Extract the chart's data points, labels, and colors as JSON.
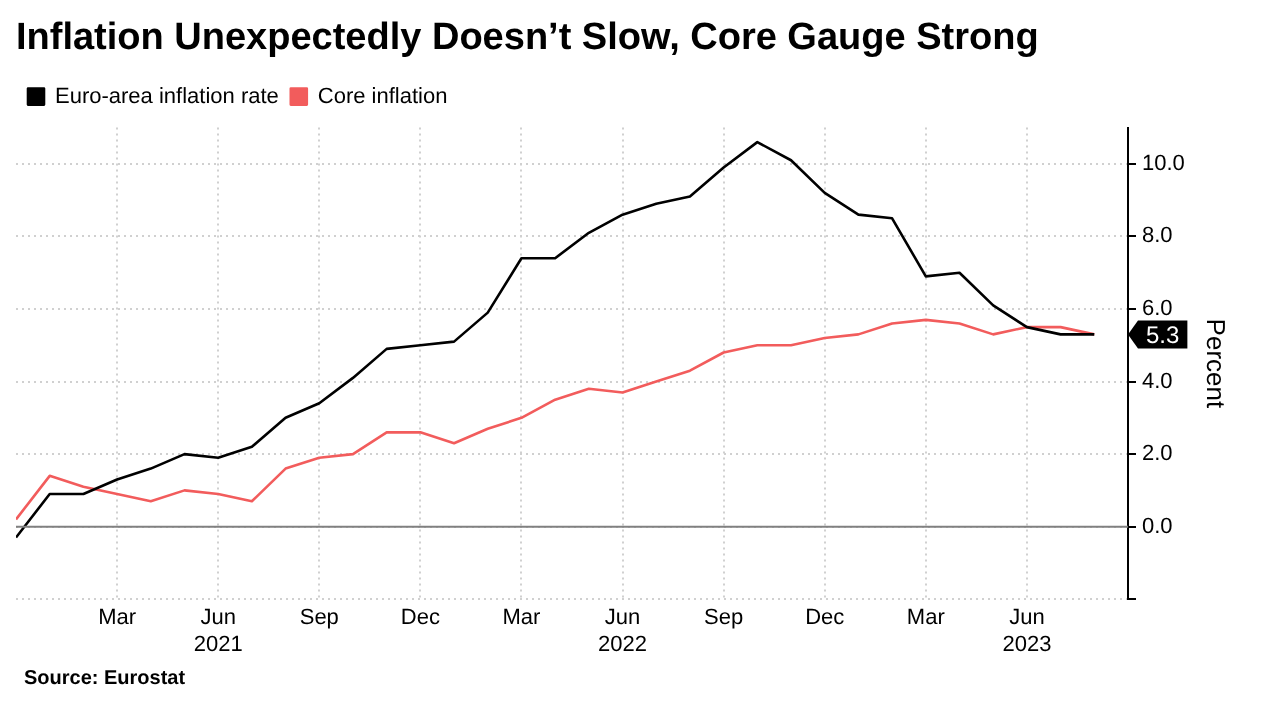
{
  "chart_data": {
    "type": "line",
    "title": "Inflation Unexpectedly Doesn’t Slow, Core Gauge Strong",
    "ylabel": "Percent",
    "x": [
      "2020-12",
      "2021-01",
      "2021-02",
      "2021-03",
      "2021-04",
      "2021-05",
      "2021-06",
      "2021-07",
      "2021-08",
      "2021-09",
      "2021-10",
      "2021-11",
      "2021-12",
      "2022-01",
      "2022-02",
      "2022-03",
      "2022-04",
      "2022-05",
      "2022-06",
      "2022-07",
      "2022-08",
      "2022-09",
      "2022-10",
      "2022-11",
      "2022-12",
      "2023-01",
      "2023-02",
      "2023-03",
      "2023-04",
      "2023-05",
      "2023-06",
      "2023-07",
      "2023-08"
    ],
    "series": [
      {
        "name": "Euro-area inflation rate",
        "color": "#000000",
        "values": [
          -0.3,
          0.9,
          0.9,
          1.3,
          1.6,
          2.0,
          1.9,
          2.2,
          3.0,
          3.4,
          4.1,
          4.9,
          5.0,
          5.1,
          5.9,
          7.4,
          7.4,
          8.1,
          8.6,
          8.9,
          9.1,
          9.9,
          10.6,
          10.1,
          9.2,
          8.6,
          8.5,
          6.9,
          7.0,
          6.1,
          5.5,
          5.3,
          5.3
        ]
      },
      {
        "name": "Core inflation",
        "color": "#f25c5c",
        "values": [
          0.2,
          1.4,
          1.1,
          0.9,
          0.7,
          1.0,
          0.9,
          0.7,
          1.6,
          1.9,
          2.0,
          2.6,
          2.6,
          2.3,
          2.7,
          3.0,
          3.5,
          3.8,
          3.7,
          4.0,
          4.3,
          4.8,
          5.0,
          5.0,
          5.2,
          5.3,
          5.6,
          5.7,
          5.6,
          5.3,
          5.5,
          5.5,
          5.3
        ]
      }
    ],
    "xlim": [
      "2020-12",
      "2023-09"
    ],
    "xticks": [
      {
        "value": "2021-03",
        "label": "Mar"
      },
      {
        "value": "2021-06",
        "label": "Jun\n2021"
      },
      {
        "value": "2021-09",
        "label": "Sep"
      },
      {
        "value": "2021-12",
        "label": "Dec"
      },
      {
        "value": "2022-03",
        "label": "Mar"
      },
      {
        "value": "2022-06",
        "label": "Jun\n2022"
      },
      {
        "value": "2022-09",
        "label": "Sep"
      },
      {
        "value": "2022-12",
        "label": "Dec"
      },
      {
        "value": "2023-03",
        "label": "Mar"
      },
      {
        "value": "2023-06",
        "label": "Jun\n2023"
      }
    ],
    "ylim": [
      -2,
      11
    ],
    "yticks": [
      {
        "value": -2,
        "label": null
      },
      {
        "value": 0,
        "label": "0.0"
      },
      {
        "value": 2,
        "label": "2.0"
      },
      {
        "value": 4,
        "label": "4.0"
      },
      {
        "value": 6,
        "label": "6.0"
      },
      {
        "value": 8,
        "label": "8.0"
      },
      {
        "value": 10,
        "label": "10.0"
      }
    ],
    "ref_lines": [
      {
        "axis": "y",
        "value": 0,
        "color": "#808080"
      }
    ],
    "annotations": [
      {
        "text": "5.3",
        "x": "2023-08",
        "y": 5.3
      },
      "Source: Eurostat"
    ],
    "grid": true,
    "legend": "top left",
    "marker": "none",
    "line_style": "solid"
  }
}
